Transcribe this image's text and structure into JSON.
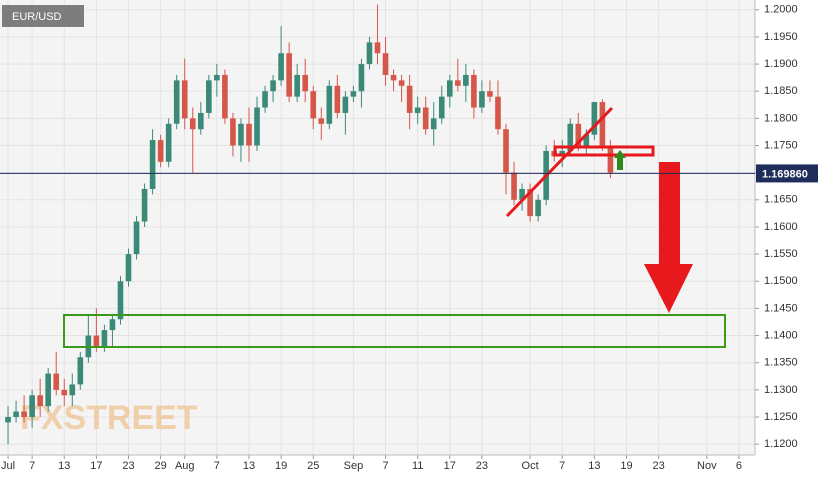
{
  "chart_data": {
    "type": "candlestick",
    "title": "EUR/USD",
    "watermark": "FXSTREET",
    "up_color": "#3b8a78",
    "down_color": "#d4574a",
    "grid": true,
    "x": [
      0,
      1,
      2,
      3,
      4,
      5,
      6,
      7,
      8,
      9,
      10,
      11,
      12,
      13,
      14,
      15,
      16,
      17,
      18,
      19,
      20,
      21,
      22,
      23,
      24,
      25,
      26,
      27,
      28,
      29,
      30,
      31,
      32,
      33,
      34,
      35,
      36,
      37,
      38,
      39,
      40,
      41,
      42,
      43,
      44,
      45,
      46,
      47,
      48,
      49,
      50,
      51,
      52,
      53,
      54,
      55,
      56,
      57,
      58,
      59,
      60,
      61,
      62,
      63,
      64,
      65,
      66,
      67,
      68,
      69,
      70,
      71,
      72,
      73,
      74,
      75
    ],
    "open": [
      1.124,
      1.125,
      1.126,
      1.125,
      1.129,
      1.127,
      1.133,
      1.13,
      1.129,
      1.131,
      1.136,
      1.14,
      1.138,
      1.141,
      1.143,
      1.15,
      1.155,
      1.161,
      1.167,
      1.176,
      1.172,
      1.179,
      1.187,
      1.18,
      1.178,
      1.181,
      1.187,
      1.188,
      1.18,
      1.175,
      1.179,
      1.175,
      1.182,
      1.185,
      1.187,
      1.192,
      1.184,
      1.188,
      1.185,
      1.18,
      1.179,
      1.186,
      1.181,
      1.184,
      1.185,
      1.19,
      1.194,
      1.192,
      1.188,
      1.187,
      1.186,
      1.181,
      1.182,
      1.178,
      1.18,
      1.184,
      1.187,
      1.186,
      1.188,
      1.182,
      1.185,
      1.184,
      1.178,
      1.17,
      1.165,
      1.167,
      1.162,
      1.165,
      1.174,
      1.173,
      1.174,
      1.179,
      1.175,
      1.177,
      1.183,
      1.175
    ],
    "high": [
      1.127,
      1.128,
      1.129,
      1.13,
      1.132,
      1.134,
      1.137,
      1.132,
      1.133,
      1.137,
      1.144,
      1.145,
      1.142,
      1.144,
      1.151,
      1.156,
      1.162,
      1.168,
      1.178,
      1.177,
      1.18,
      1.188,
      1.191,
      1.182,
      1.183,
      1.188,
      1.19,
      1.189,
      1.181,
      1.18,
      1.182,
      1.184,
      1.186,
      1.188,
      1.197,
      1.194,
      1.19,
      1.191,
      1.186,
      1.182,
      1.187,
      1.188,
      1.185,
      1.186,
      1.191,
      1.195,
      1.201,
      1.195,
      1.189,
      1.188,
      1.188,
      1.184,
      1.184,
      1.183,
      1.186,
      1.188,
      1.191,
      1.19,
      1.189,
      1.187,
      1.187,
      1.187,
      1.179,
      1.172,
      1.168,
      1.168,
      1.166,
      1.175,
      1.176,
      1.176,
      1.18,
      1.181,
      1.178,
      1.183,
      1.1835,
      1.176
    ],
    "low": [
      1.12,
      1.124,
      1.124,
      1.123,
      1.125,
      1.126,
      1.129,
      1.127,
      1.127,
      1.13,
      1.135,
      1.137,
      1.137,
      1.138,
      1.142,
      1.149,
      1.154,
      1.16,
      1.166,
      1.171,
      1.171,
      1.178,
      1.178,
      1.17,
      1.177,
      1.18,
      1.184,
      1.179,
      1.173,
      1.172,
      1.172,
      1.174,
      1.181,
      1.183,
      1.186,
      1.183,
      1.183,
      1.183,
      1.178,
      1.176,
      1.178,
      1.18,
      1.177,
      1.183,
      1.182,
      1.189,
      1.19,
      1.186,
      1.185,
      1.183,
      1.178,
      1.179,
      1.177,
      1.175,
      1.179,
      1.182,
      1.185,
      1.183,
      1.18,
      1.181,
      1.183,
      1.177,
      1.166,
      1.164,
      1.163,
      1.161,
      1.161,
      1.164,
      1.172,
      1.171,
      1.173,
      1.174,
      1.173,
      1.176,
      1.174,
      1.169
    ],
    "close": [
      1.125,
      1.126,
      1.125,
      1.129,
      1.127,
      1.133,
      1.13,
      1.129,
      1.131,
      1.136,
      1.14,
      1.138,
      1.141,
      1.143,
      1.15,
      1.155,
      1.161,
      1.167,
      1.176,
      1.172,
      1.179,
      1.187,
      1.18,
      1.178,
      1.181,
      1.187,
      1.188,
      1.18,
      1.175,
      1.179,
      1.175,
      1.182,
      1.185,
      1.187,
      1.192,
      1.184,
      1.188,
      1.185,
      1.18,
      1.179,
      1.186,
      1.181,
      1.184,
      1.185,
      1.19,
      1.194,
      1.192,
      1.188,
      1.187,
      1.186,
      1.181,
      1.182,
      1.178,
      1.18,
      1.184,
      1.187,
      1.186,
      1.188,
      1.182,
      1.185,
      1.184,
      1.178,
      1.17,
      1.165,
      1.167,
      1.162,
      1.165,
      1.174,
      1.173,
      1.174,
      1.179,
      1.175,
      1.177,
      1.183,
      1.175,
      1.17
    ],
    "xlim": [
      -1,
      93
    ],
    "xticks": [
      {
        "value": 0,
        "label": "Jul"
      },
      {
        "value": 3,
        "label": "7"
      },
      {
        "value": 7,
        "label": "13"
      },
      {
        "value": 11,
        "label": "17"
      },
      {
        "value": 15,
        "label": "23"
      },
      {
        "value": 19,
        "label": "29"
      },
      {
        "value": 22,
        "label": "Aug"
      },
      {
        "value": 26,
        "label": "7"
      },
      {
        "value": 30,
        "label": "13"
      },
      {
        "value": 34,
        "label": "19"
      },
      {
        "value": 38,
        "label": "25"
      },
      {
        "value": 43,
        "label": "Sep"
      },
      {
        "value": 47,
        "label": "7"
      },
      {
        "value": 51,
        "label": "11"
      },
      {
        "value": 55,
        "label": "17"
      },
      {
        "value": 59,
        "label": "23"
      },
      {
        "value": 65,
        "label": "Oct"
      },
      {
        "value": 69,
        "label": "7"
      },
      {
        "value": 73,
        "label": "13"
      },
      {
        "value": 77,
        "label": "19"
      },
      {
        "value": 81,
        "label": "23"
      },
      {
        "value": 87,
        "label": "Nov"
      },
      {
        "value": 91,
        "label": "6"
      }
    ],
    "ylim": [
      1.118,
      1.2018
    ],
    "yticks": [
      {
        "value": 1.12,
        "label": "1.1200"
      },
      {
        "value": 1.125,
        "label": "1.1250"
      },
      {
        "value": 1.13,
        "label": "1.1300"
      },
      {
        "value": 1.135,
        "label": "1.1350"
      },
      {
        "value": 1.14,
        "label": "1.1400"
      },
      {
        "value": 1.145,
        "label": "1.1450"
      },
      {
        "value": 1.15,
        "label": "1.1500"
      },
      {
        "value": 1.155,
        "label": "1.1550"
      },
      {
        "value": 1.16,
        "label": "1.1600"
      },
      {
        "value": 1.165,
        "label": "1.1650"
      },
      {
        "value": 1.17,
        "label": "1.1700"
      },
      {
        "value": 1.175,
        "label": "1.1750"
      },
      {
        "value": 1.18,
        "label": "1.1800"
      },
      {
        "value": 1.185,
        "label": "1.1850"
      },
      {
        "value": 1.19,
        "label": "1.1900"
      },
      {
        "value": 1.195,
        "label": "1.1950"
      },
      {
        "value": 1.2,
        "label": "1.2000"
      }
    ],
    "last_price": {
      "value": 1.16986,
      "label": "1.169860"
    }
  }
}
